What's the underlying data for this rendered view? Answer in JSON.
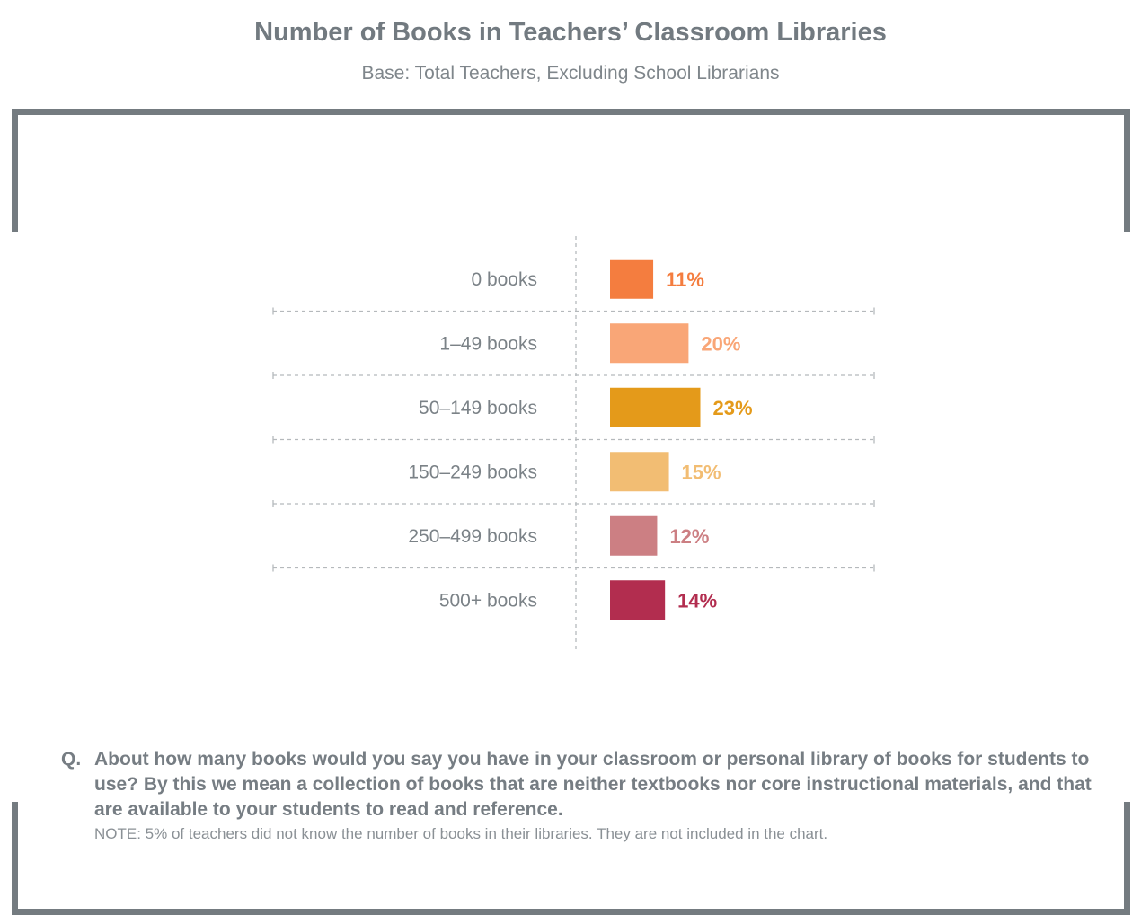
{
  "title": "Number of Books in Teachers’ Classroom Libraries",
  "subtitle": "Base: Total Teachers, Excluding School Librarians",
  "chart_data": {
    "type": "bar",
    "orientation": "horizontal",
    "categories": [
      "0 books",
      "1–49 books",
      "50–149 books",
      "150–249 books",
      "250–499 books",
      "500+ books"
    ],
    "values": [
      11,
      20,
      23,
      15,
      12,
      14
    ],
    "value_labels": [
      "11%",
      "20%",
      "23%",
      "15%",
      "12%",
      "14%"
    ],
    "colors": [
      "#f47d3f",
      "#f9a677",
      "#e49a1a",
      "#f2bd73",
      "#cc7f83",
      "#b22d4f"
    ],
    "unit": "%",
    "grid": "dashed row separators",
    "legend": "none"
  },
  "question": {
    "marker": "Q.",
    "text": "About how many books would you say you have in your classroom or personal library of books for students to use? By this we mean a collection of books that are neither textbooks nor core instructional materials, and that are available to your students to read and reference."
  },
  "note": "NOTE: 5% of teachers did not know the number of books in their libraries. They are not included in the chart."
}
